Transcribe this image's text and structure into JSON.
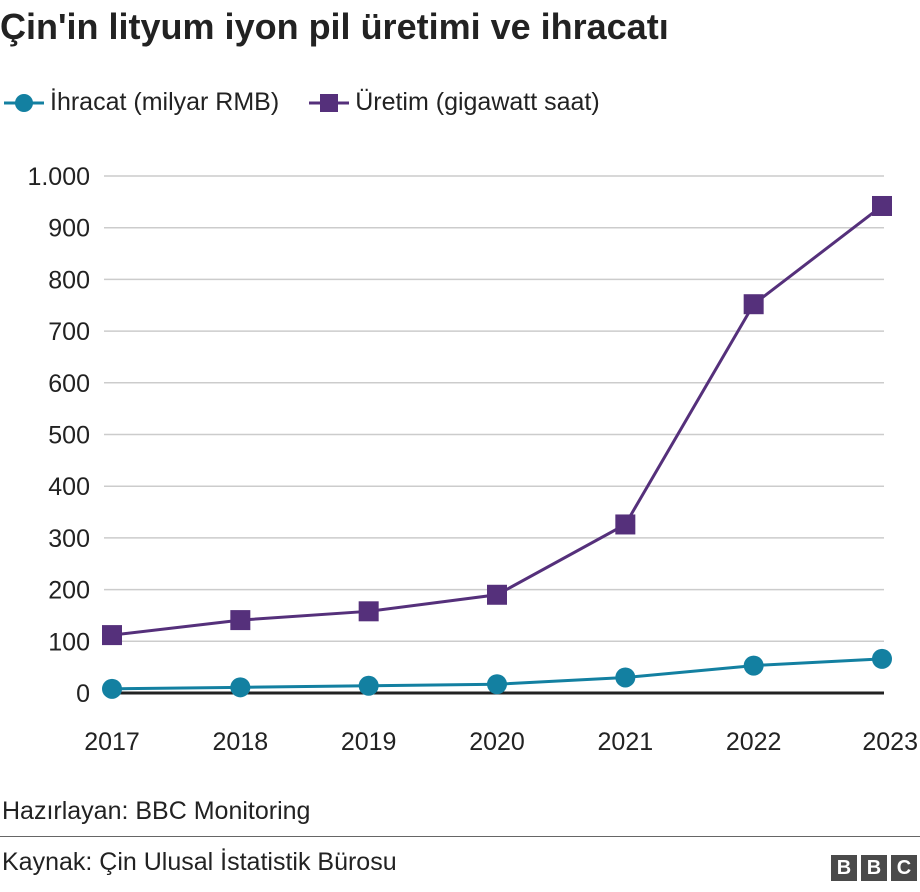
{
  "chart_data": {
    "type": "line",
    "title": "Çin'in lityum iyon pil üretimi ve ihracatı",
    "categories": [
      "2017",
      "2018",
      "2019",
      "2020",
      "2021",
      "2022",
      "2023"
    ],
    "ylim": [
      0,
      1000
    ],
    "yticks": [
      0,
      100,
      200,
      300,
      400,
      500,
      600,
      700,
      800,
      900,
      1000
    ],
    "ytick_labels": [
      "0",
      "100",
      "200",
      "300",
      "400",
      "500",
      "600",
      "700",
      "800",
      "900",
      "1.000"
    ],
    "grid": true,
    "legend_position": "top-left",
    "series": [
      {
        "name": "İhracat (milyar RMB)",
        "color": "#1380a1",
        "marker": "circle",
        "values": [
          8,
          11,
          14,
          17,
          30,
          53,
          66
        ]
      },
      {
        "name": "Üretim (gigawatt saat)",
        "color": "#55307b",
        "marker": "square",
        "values": [
          112,
          141,
          158,
          190,
          326,
          752,
          942
        ]
      }
    ]
  },
  "footer": {
    "credit": "Hazırlayan: BBC Monitoring",
    "source": "Kaynak: Çin Ulusal İstatistik Bürosu",
    "logo_letters": [
      "B",
      "B",
      "C"
    ]
  }
}
